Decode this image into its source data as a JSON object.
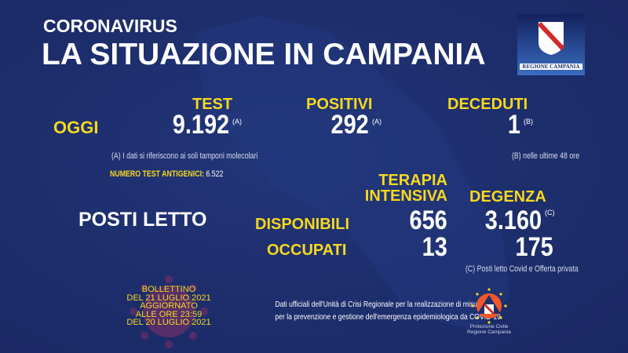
{
  "header": {
    "kicker": "CORONAVIRUS",
    "title": "LA SITUAZIONE IN CAMPANIA",
    "logo_text": "REGIONE CAMPANIA"
  },
  "oggi": {
    "label": "OGGI",
    "test": {
      "label": "TEST",
      "value": "9.192",
      "ref": "(A)"
    },
    "positivi": {
      "label": "POSITIVI",
      "value": "292",
      "ref": "(A)"
    },
    "deceduti": {
      "label": "DECEDUTI",
      "value": "1",
      "ref": "(B)"
    },
    "note_a": "(A) I dati si riferiscono ai soli tamponi molecolari",
    "note_b": "(B) nelle ultime 48 ore",
    "antigen_label": "NUMERO TEST ANTIGENICI:",
    "antigen_value": "6.522"
  },
  "posti": {
    "label": "POSTI LETTO",
    "col_ti_1": "TERAPIA",
    "col_ti_2": "INTENSIVA",
    "col_deg": "DEGENZA",
    "deg_ref": "(C)",
    "rows": [
      {
        "label": "DISPONIBILI",
        "ti": "656",
        "deg": "3.160"
      },
      {
        "label": "OCCUPATI",
        "ti": "13",
        "deg": "175"
      }
    ],
    "note_c": "(C) Posti letto Covid e Offerta privata"
  },
  "bulletin": [
    "BOLLETTINO",
    "DEL 21 LUGLIO 2021",
    "AGGIORNATO",
    "ALLE ORE 23:59",
    "DEL 20 LUGLIO 2021"
  ],
  "footer": {
    "line1": "Dati ufficiali dell'Unità di Crisi Regionale per la realizzazione di misure",
    "line2": "per la prevenzione e gestione dell'emergenza epidemiologica da COVID-19"
  },
  "protezione": {
    "line1": "Protezione Civile",
    "line2": "Regione Campania"
  },
  "colors": {
    "background": "#1e2f6e",
    "accent": "#f7d81e"
  }
}
